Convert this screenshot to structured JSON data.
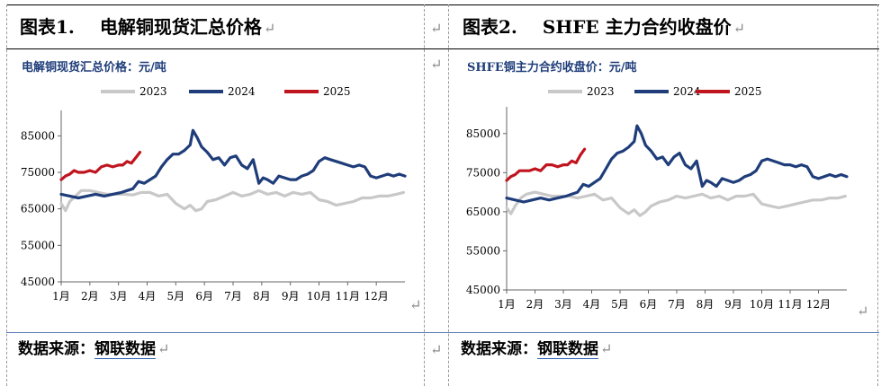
{
  "figures": [
    {
      "number": "图表1.",
      "title": "电解铜现货汇总价格",
      "source_prefix": "数据来源：",
      "source_name": "钢联数据"
    },
    {
      "number": "图表2.",
      "title": "SHFE 主力合约收盘价",
      "source_prefix": "数据来源：",
      "source_name": "钢联数据"
    }
  ],
  "return_mark": "↵",
  "colors": {
    "2023": "#c8c8c8",
    "2024": "#1f3d7a",
    "2025": "#c0141e",
    "chart_title": "#1f3d7a"
  },
  "chart_data": [
    {
      "type": "line",
      "title": "电解铜现货汇总价格：元/吨",
      "xlabel": "",
      "ylabel": "",
      "x_ticks": [
        "1月",
        "2月",
        "3月",
        "4月",
        "5月",
        "6月",
        "7月",
        "8月",
        "9月",
        "10月",
        "11月",
        "12月"
      ],
      "y_ticks": [
        45000,
        55000,
        65000,
        75000,
        85000
      ],
      "ylim": [
        45000,
        90000
      ],
      "xlim": [
        1,
        13
      ],
      "legend": "top",
      "grid": false,
      "series": [
        {
          "name": "2023",
          "color": "#c8c8c8",
          "x": [
            1.0,
            1.15,
            1.3,
            1.5,
            1.7,
            2.0,
            2.3,
            2.6,
            2.9,
            3.2,
            3.5,
            3.8,
            4.1,
            4.4,
            4.7,
            5.0,
            5.3,
            5.5,
            5.7,
            5.9,
            6.1,
            6.4,
            6.7,
            7.0,
            7.3,
            7.6,
            7.9,
            8.2,
            8.5,
            8.8,
            9.1,
            9.4,
            9.7,
            10.0,
            10.3,
            10.6,
            10.9,
            11.2,
            11.5,
            11.8,
            12.1,
            12.4,
            12.7,
            12.95
          ],
          "y": [
            66500,
            64500,
            67000,
            68500,
            70000,
            70000,
            69500,
            69000,
            69000,
            69000,
            68800,
            69500,
            69500,
            68500,
            69000,
            66500,
            65000,
            66000,
            64500,
            65000,
            67000,
            67500,
            68500,
            69500,
            68500,
            69000,
            70000,
            69000,
            69500,
            68500,
            69500,
            69000,
            69500,
            67500,
            67000,
            66000,
            66500,
            67000,
            68000,
            68000,
            68500,
            68500,
            69000,
            69500
          ]
        },
        {
          "name": "2024",
          "color": "#1f3d7a",
          "x": [
            1.0,
            1.3,
            1.6,
            1.9,
            2.2,
            2.5,
            2.8,
            3.1,
            3.3,
            3.5,
            3.7,
            3.9,
            4.1,
            4.3,
            4.5,
            4.7,
            4.9,
            5.1,
            5.3,
            5.5,
            5.6,
            5.75,
            5.9,
            6.1,
            6.3,
            6.5,
            6.7,
            6.9,
            7.1,
            7.3,
            7.5,
            7.7,
            7.9,
            8.05,
            8.2,
            8.4,
            8.6,
            8.8,
            9.0,
            9.2,
            9.4,
            9.6,
            9.8,
            10.0,
            10.2,
            10.4,
            10.6,
            10.8,
            11.0,
            11.2,
            11.4,
            11.6,
            11.8,
            12.0,
            12.2,
            12.4,
            12.6,
            12.8,
            13.0
          ],
          "y": [
            69000,
            68500,
            68000,
            68500,
            69000,
            68500,
            69000,
            69500,
            70000,
            70500,
            72500,
            72000,
            73000,
            74000,
            76500,
            78500,
            80000,
            80000,
            81000,
            82500,
            86500,
            84500,
            82000,
            80500,
            78500,
            79000,
            77000,
            79000,
            79500,
            77000,
            76000,
            78500,
            72000,
            73500,
            73000,
            72000,
            74000,
            73500,
            73000,
            73000,
            74000,
            74500,
            75500,
            78000,
            79000,
            78500,
            78000,
            77500,
            77000,
            76500,
            77000,
            76500,
            74000,
            73500,
            74000,
            74500,
            74000,
            74500,
            74000
          ]
        },
        {
          "name": "2025",
          "color": "#c0141e",
          "x": [
            1.0,
            1.15,
            1.3,
            1.45,
            1.6,
            1.8,
            2.0,
            2.2,
            2.4,
            2.6,
            2.8,
            3.0,
            3.15,
            3.3,
            3.45,
            3.6,
            3.75
          ],
          "y": [
            73000,
            74000,
            74500,
            75500,
            75000,
            75000,
            75500,
            75000,
            76500,
            77000,
            76500,
            77000,
            77000,
            78000,
            77500,
            79000,
            80500
          ]
        }
      ]
    },
    {
      "type": "line",
      "title": "SHFE铜主力合约收盘价：元/吨",
      "xlabel": "",
      "ylabel": "",
      "x_ticks": [
        "1月",
        "2月",
        "3月",
        "4月",
        "5月",
        "6月",
        "7月",
        "8月",
        "9月",
        "10月",
        "11月",
        "12月"
      ],
      "y_ticks": [
        45000,
        55000,
        65000,
        75000,
        85000
      ],
      "ylim": [
        45000,
        90000
      ],
      "xlim": [
        1,
        13
      ],
      "legend": "top",
      "grid": false,
      "series": [
        {
          "name": "2023",
          "color": "#c8c8c8",
          "x": [
            1.0,
            1.15,
            1.3,
            1.5,
            1.7,
            2.0,
            2.3,
            2.6,
            2.9,
            3.2,
            3.5,
            3.8,
            4.1,
            4.4,
            4.7,
            5.0,
            5.3,
            5.5,
            5.7,
            5.9,
            6.1,
            6.4,
            6.7,
            7.0,
            7.3,
            7.6,
            7.9,
            8.2,
            8.5,
            8.8,
            9.1,
            9.4,
            9.7,
            10.0,
            10.3,
            10.6,
            10.9,
            11.2,
            11.5,
            11.8,
            12.1,
            12.4,
            12.7,
            12.95
          ],
          "y": [
            66000,
            64500,
            66500,
            68500,
            69500,
            70000,
            69500,
            69000,
            69000,
            69000,
            68500,
            69000,
            69500,
            68000,
            68500,
            66000,
            64500,
            65500,
            64000,
            65000,
            66500,
            67500,
            68000,
            69000,
            68500,
            69000,
            69500,
            68500,
            69000,
            68000,
            69000,
            69000,
            69500,
            67000,
            66500,
            66000,
            66500,
            67000,
            67500,
            68000,
            68000,
            68500,
            68500,
            69000
          ]
        },
        {
          "name": "2024",
          "color": "#1f3d7a",
          "x": [
            1.0,
            1.3,
            1.6,
            1.9,
            2.2,
            2.5,
            2.8,
            3.1,
            3.3,
            3.5,
            3.7,
            3.9,
            4.1,
            4.3,
            4.5,
            4.7,
            4.9,
            5.1,
            5.3,
            5.5,
            5.6,
            5.75,
            5.9,
            6.1,
            6.3,
            6.5,
            6.7,
            6.9,
            7.1,
            7.3,
            7.5,
            7.7,
            7.9,
            8.05,
            8.2,
            8.4,
            8.6,
            8.8,
            9.0,
            9.2,
            9.4,
            9.6,
            9.8,
            10.0,
            10.2,
            10.4,
            10.6,
            10.8,
            11.0,
            11.2,
            11.4,
            11.6,
            11.8,
            12.0,
            12.2,
            12.4,
            12.6,
            12.8,
            13.0
          ],
          "y": [
            68500,
            68000,
            67500,
            68000,
            68500,
            68000,
            68500,
            69000,
            69500,
            70000,
            72000,
            71500,
            72500,
            73500,
            76000,
            78500,
            80000,
            80500,
            81500,
            83000,
            87000,
            85000,
            82000,
            80500,
            78500,
            79000,
            77000,
            79000,
            80000,
            77000,
            76000,
            78000,
            71500,
            73000,
            72500,
            71500,
            73500,
            73000,
            72500,
            73000,
            74000,
            74500,
            75500,
            78000,
            78500,
            78000,
            77500,
            77000,
            77000,
            76500,
            77000,
            76500,
            74000,
            73500,
            74000,
            74500,
            74000,
            74500,
            74000
          ]
        },
        {
          "name": "2025",
          "color": "#c0141e",
          "x": [
            1.0,
            1.15,
            1.3,
            1.45,
            1.6,
            1.8,
            2.0,
            2.2,
            2.4,
            2.6,
            2.8,
            3.0,
            3.15,
            3.3,
            3.45,
            3.6,
            3.75
          ],
          "y": [
            73000,
            74000,
            74500,
            75500,
            75500,
            75500,
            76000,
            75500,
            77000,
            77000,
            76500,
            77000,
            77000,
            78000,
            77500,
            79500,
            81000
          ]
        }
      ]
    }
  ]
}
